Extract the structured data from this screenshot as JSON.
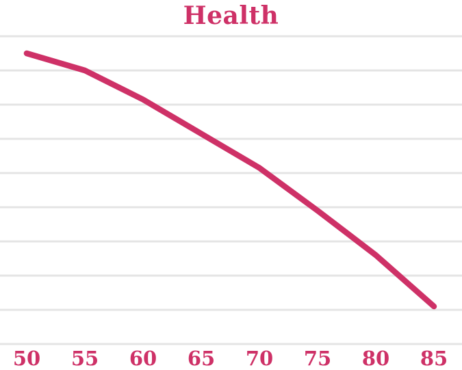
{
  "title": "Health",
  "colors": {
    "accent": "#CE3167",
    "gridline": "#E4E4E4",
    "background": "#FFFFFF"
  },
  "chart_data": {
    "type": "line",
    "title": "Health",
    "x": [
      50,
      55,
      60,
      65,
      70,
      75,
      80,
      85
    ],
    "values": [
      8.5,
      8.0,
      7.15,
      6.15,
      5.15,
      3.9,
      2.6,
      1.1
    ],
    "xlabel": "",
    "ylabel": "",
    "xlim": [
      50,
      85
    ],
    "ylim": [
      0,
      9
    ],
    "x_tick_step": 5,
    "gridlines": "horizontal",
    "gridline_count": 10,
    "y_axis_labels_visible": false,
    "legend": "none",
    "line_color": "#CE3167",
    "line_width": 8.5
  }
}
